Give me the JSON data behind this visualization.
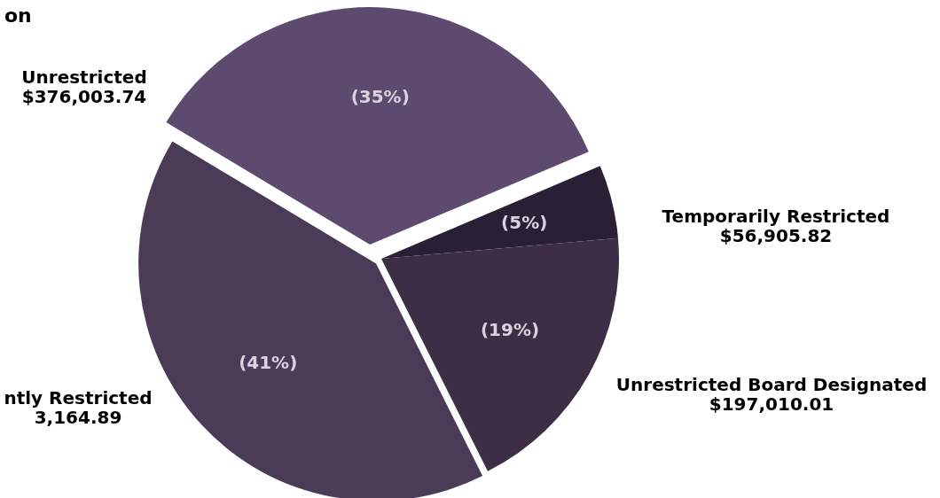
{
  "chart_data": {
    "type": "pie",
    "title": "on",
    "categories": [
      "Unrestricted",
      "Temporarily Restricted",
      "Unrestricted Board Designated",
      "ntly Restricted"
    ],
    "values": [
      35,
      5,
      19,
      41
    ],
    "colors": [
      "#5e4a6e",
      "#2a2035",
      "#3d2d45",
      "#4b3b57"
    ],
    "value_labels": [
      "(35%)",
      "(5%)",
      "(19%)",
      "(41%)"
    ],
    "annotations": [
      "$376,003.74",
      "$56,905.82",
      "$197,010.01",
      "3,164.89"
    ]
  }
}
